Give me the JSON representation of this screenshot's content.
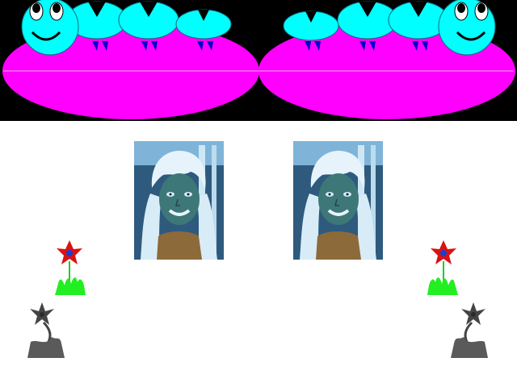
{
  "scene": {
    "background_color": "#ffffff",
    "banner_color": "#000000",
    "pod_color": "#ff00ff",
    "creature_color": "#00ffff",
    "fin_color": "#0000cc",
    "spike_color": "#000000",
    "flower_petal_color": "#dd1111",
    "flower_center_color": "#1a3fd0",
    "grass_color": "#22ee22",
    "withered_color": "#555555"
  },
  "banner": {
    "smiley_heads": 2,
    "caterpillar_segments_per_side": 3
  },
  "portraits": [
    {
      "description_icon": "inverted-portrait-icon"
    },
    {
      "description_icon": "inverted-portrait-icon"
    }
  ],
  "plants": {
    "left": [
      "flower-icon",
      "withered-flower-icon"
    ],
    "right": [
      "flower-icon",
      "withered-flower-icon"
    ]
  }
}
